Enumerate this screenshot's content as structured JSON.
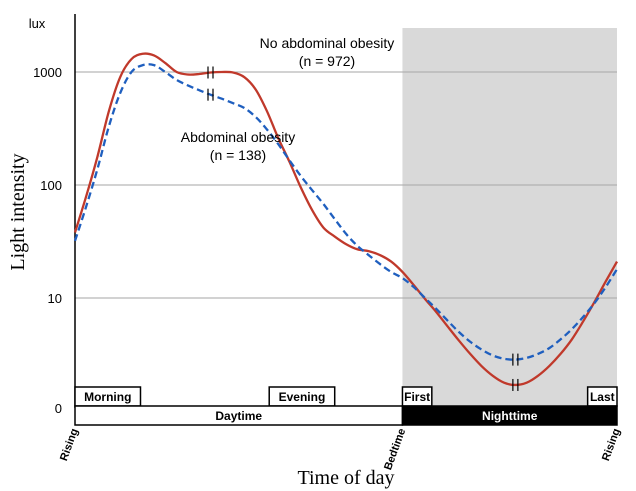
{
  "chart_data": {
    "type": "line",
    "scale": "log",
    "yunit": "lux",
    "ylabel": "Light intensity",
    "xlabel": "Time of day",
    "yticks": [
      {
        "value": 1000,
        "label": "1000"
      },
      {
        "value": 100,
        "label": "100"
      },
      {
        "value": 10,
        "label": "10"
      },
      {
        "value": 0,
        "label": "0"
      }
    ],
    "x_markers": [
      {
        "t": 0,
        "label": "Rising"
      },
      {
        "t": 14.5,
        "label": "Bedtime"
      },
      {
        "t": 24,
        "label": "Rising"
      }
    ],
    "night_shading": {
      "from": 14.5,
      "to": 24,
      "color": "#d9d9d9"
    },
    "series": [
      {
        "name": "No abdominal obesity",
        "n_label": "(n = 972)",
        "color": "#c0392b",
        "style": "solid",
        "x": [
          0,
          0.5,
          1,
          1.5,
          2,
          2.5,
          3,
          3.5,
          4,
          4.5,
          5,
          5.5,
          6,
          6.5,
          7,
          7.5,
          8,
          8.5,
          9,
          9.5,
          10,
          10.5,
          11,
          11.5,
          12,
          12.5,
          13,
          13.5,
          14,
          14.5,
          15,
          15.5,
          16,
          16.5,
          17,
          17.5,
          18,
          18.5,
          19,
          19.5,
          20,
          20.5,
          21,
          21.5,
          22,
          22.5,
          23,
          23.5,
          24
        ],
        "values": [
          38,
          80,
          180,
          450,
          900,
          1300,
          1450,
          1400,
          1200,
          1000,
          950,
          960,
          990,
          1000,
          990,
          900,
          700,
          450,
          260,
          160,
          95,
          60,
          42,
          35,
          30,
          27,
          26,
          24,
          21,
          17,
          13,
          9.8,
          7.5,
          5.6,
          4.2,
          3.2,
          2.5,
          2.05,
          1.78,
          1.7,
          1.78,
          2.05,
          2.5,
          3.2,
          4.3,
          6.2,
          9.2,
          14,
          21
        ]
      },
      {
        "name": "Abdominal obesity",
        "n_label": "(n = 138)",
        "color": "#1f5fbf",
        "style": "dashed",
        "x": [
          0,
          0.5,
          1,
          1.5,
          2,
          2.5,
          3,
          3.5,
          4,
          4.5,
          5,
          5.5,
          6,
          6.5,
          7,
          7.5,
          8,
          8.5,
          9,
          9.5,
          10,
          10.5,
          11,
          11.5,
          12,
          12.5,
          13,
          13.5,
          14,
          14.5,
          15,
          15.5,
          16,
          16.5,
          17,
          17.5,
          18,
          18.5,
          19,
          19.5,
          20,
          20.5,
          21,
          21.5,
          22,
          22.5,
          23,
          23.5,
          24
        ],
        "values": [
          32,
          65,
          140,
          330,
          650,
          1000,
          1150,
          1150,
          1000,
          850,
          760,
          690,
          630,
          580,
          530,
          480,
          400,
          310,
          230,
          165,
          120,
          90,
          68,
          50,
          37,
          29,
          24,
          20,
          17,
          15,
          12.5,
          10,
          8,
          6.3,
          5,
          4.1,
          3.5,
          3.1,
          2.9,
          2.85,
          2.95,
          3.2,
          3.6,
          4.3,
          5.3,
          6.8,
          9,
          12.5,
          18
        ]
      }
    ],
    "period_boxes": [
      {
        "label": "Morning",
        "from": 0,
        "to": 2.9,
        "row": "top",
        "style": "white"
      },
      {
        "label": "Evening",
        "from": 8.6,
        "to": 11.5,
        "row": "top",
        "style": "white"
      },
      {
        "label": "First",
        "from": 14.5,
        "to": 15.8,
        "row": "top",
        "style": "white"
      },
      {
        "label": "Last",
        "from": 22.7,
        "to": 24,
        "row": "top",
        "style": "white"
      },
      {
        "label": "Daytime",
        "from": 0,
        "to": 14.5,
        "row": "bottom",
        "style": "white"
      },
      {
        "label": "Nighttime",
        "from": 14.5,
        "to": 24,
        "row": "bottom",
        "style": "black"
      }
    ],
    "break_marks": [
      {
        "series": 0,
        "t": 6
      },
      {
        "series": 1,
        "t": 6
      },
      {
        "series": 0,
        "t": 14.4,
        "offset": 3.5
      },
      {
        "series": 1,
        "t": 14.4,
        "offset": 3.5
      }
    ],
    "grid": true
  }
}
